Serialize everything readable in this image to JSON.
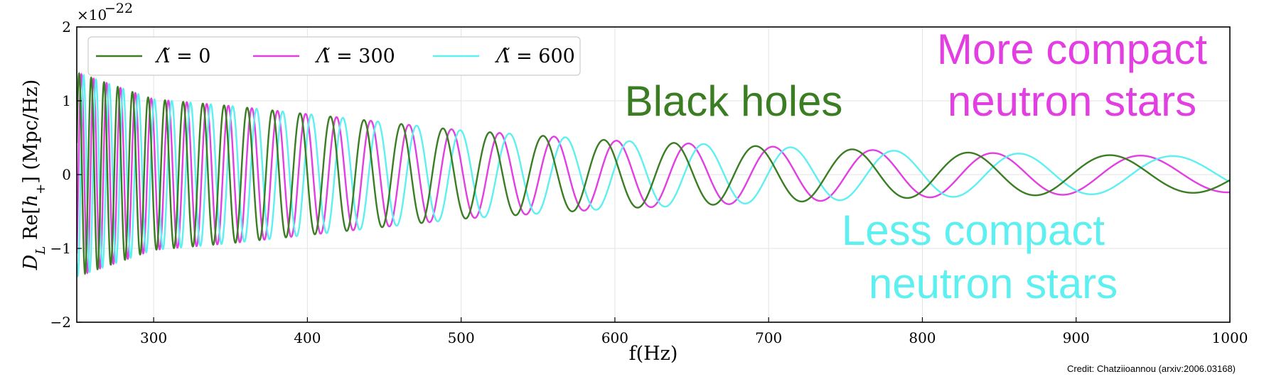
{
  "chart_data": {
    "type": "line",
    "xlabel": "f(Hz)",
    "ylabel": "D_L Re[h̃₊] (Mpc/Hz)",
    "ylabel_parts": {
      "a": "D",
      "sub": "L",
      "b": " Re[",
      "h": "h",
      "tilde": "~",
      "sub2": "+",
      "c": "] (Mpc/Hz)"
    },
    "y_multiplier": "×10",
    "y_exponent": "−22",
    "xlim": [
      250,
      1000
    ],
    "ylim": [
      -2,
      2
    ],
    "xticks": [
      300,
      400,
      500,
      600,
      700,
      800,
      900,
      1000
    ],
    "yticks": [
      -2,
      -1,
      0,
      1,
      2
    ],
    "ytick_labels": [
      "−2",
      "−1",
      "0",
      "1",
      "2"
    ],
    "grid": true,
    "legend_position": "top-left",
    "series": [
      {
        "name": "Λ̃ = 0",
        "color": "#3a7d22",
        "phase_offset": 0.0,
        "x": [
          250,
          300,
          350,
          400,
          450,
          500,
          600,
          700,
          800,
          900,
          1000
        ],
        "envelope": [
          1.38,
          1.02,
          0.93,
          0.82,
          0.71,
          0.6,
          0.46,
          0.38,
          0.31,
          0.27,
          0.24
        ]
      },
      {
        "name": "Λ̃ = 300",
        "color": "#e23ee2",
        "phase_offset": 1.2,
        "x": [
          250,
          300,
          350,
          400,
          450,
          500,
          600,
          700,
          800,
          900,
          1000
        ],
        "envelope": [
          1.38,
          1.02,
          0.93,
          0.82,
          0.71,
          0.6,
          0.46,
          0.38,
          0.31,
          0.27,
          0.24
        ]
      },
      {
        "name": "Λ̃ = 600",
        "color": "#5ef0f0",
        "phase_offset": 2.4,
        "x": [
          250,
          300,
          350,
          400,
          450,
          500,
          600,
          700,
          800,
          900,
          1000
        ],
        "envelope": [
          1.38,
          1.02,
          0.93,
          0.82,
          0.71,
          0.6,
          0.46,
          0.38,
          0.31,
          0.27,
          0.24
        ]
      }
    ],
    "legend": [
      {
        "symbol": "Λ̃",
        "eq": " = 0"
      },
      {
        "symbol": "Λ̃",
        "eq": " = 300"
      },
      {
        "symbol": "Λ̃",
        "eq": " = 600"
      }
    ],
    "annotations": [
      {
        "lines": [
          "Black holes"
        ],
        "color": "#3a7d22"
      },
      {
        "lines": [
          "More compact",
          "neutron stars"
        ],
        "color": "#e23ee2"
      },
      {
        "lines": [
          "Less compact",
          "neutron stars"
        ],
        "color": "#5ef0f0"
      }
    ]
  },
  "credit": "Credit: Chatziioannou (arxiv:2006.03168)"
}
